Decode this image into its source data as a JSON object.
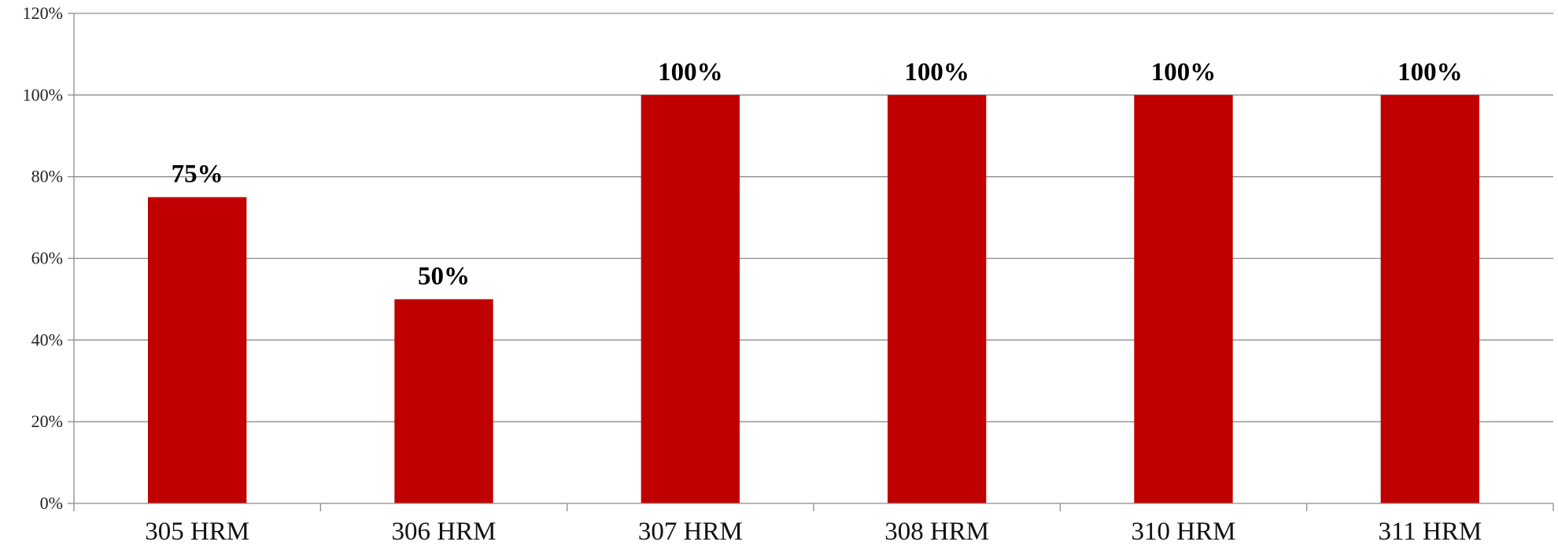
{
  "chart_data": {
    "type": "bar",
    "categories": [
      "305 HRM",
      "306 HRM",
      "307 HRM",
      "308 HRM",
      "310 HRM",
      "311 HRM"
    ],
    "values": [
      75,
      50,
      100,
      100,
      100,
      100
    ],
    "data_labels": [
      "75%",
      "50%",
      "100%",
      "100%",
      "100%",
      "100%"
    ],
    "ylim": [
      0,
      120
    ],
    "y_ticks": [
      0,
      20,
      40,
      60,
      80,
      100,
      120
    ],
    "y_tick_labels": [
      "0%",
      "20%",
      "40%",
      "60%",
      "80%",
      "100%",
      "120%"
    ],
    "grid": true,
    "legend": "none",
    "bar_color": "#c00000"
  }
}
